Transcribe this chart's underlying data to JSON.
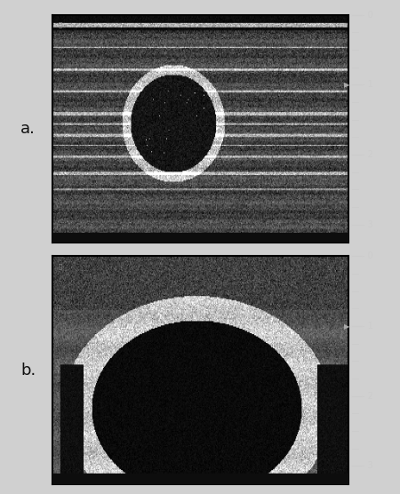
{
  "background_color": "#1a1a1a",
  "figure_bg": "#d0d0d0",
  "panel_a_label": "a.",
  "panel_b_label": "b.",
  "label_color": "#111111",
  "label_fontsize": 13,
  "scale_color": "#cccccc",
  "scale_fontsize": 7,
  "scale_ticks_a": [
    0,
    1,
    2,
    3
  ],
  "scale_ticks_b": [
    0,
    1,
    2,
    3
  ],
  "ruler_arrow_color": "#aaaaaa",
  "panel_bg": "#2a2a2a",
  "panel_border_color": "#000000",
  "top_bar_color": "#111111",
  "top_bar_height": 0.03
}
